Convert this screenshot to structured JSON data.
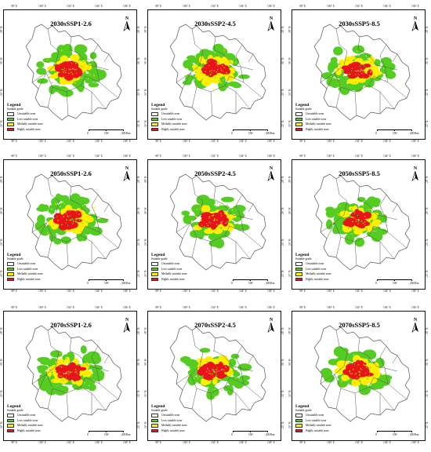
{
  "panels": [
    {
      "title": "2030sSSP1-2.6"
    },
    {
      "title": "2030sSSP2-4.5"
    },
    {
      "title": "2030sSSP5-8.5"
    },
    {
      "title": "2050sSSP1-2.6"
    },
    {
      "title": "2050sSSP2-4.5"
    },
    {
      "title": "2050sSSP5-8.5"
    },
    {
      "title": "2070sSSP1-2.6"
    },
    {
      "title": "2070sSSP2-4.5"
    },
    {
      "title": "2070sSSP5-8.5"
    }
  ],
  "north_label": "N",
  "legend": {
    "title": "Legend",
    "subtitle": "Suitable grade",
    "items": [
      {
        "label": "Unsuitable zone",
        "color": "#ffffff"
      },
      {
        "label": "Less suitable zone",
        "color": "#55cc22"
      },
      {
        "label": "Medially suitable zone",
        "color": "#ffee00"
      },
      {
        "label": "Highly suitable zone",
        "color": "#e8141a"
      }
    ]
  },
  "scale_bar": {
    "ticks": [
      "0",
      "100",
      "200"
    ],
    "unit": "Km"
  },
  "longitude_labels": [
    "98° E",
    "100° E",
    "102° E",
    "104° E",
    "106° E"
  ],
  "latitude_labels": [
    "28° N",
    "26° N",
    "24° N",
    "22° N"
  ],
  "colors": {
    "boundary": "#555555",
    "unsuitable": "#ffffff",
    "less": "#55cc22",
    "medial": "#ffee00",
    "high": "#e8141a"
  }
}
